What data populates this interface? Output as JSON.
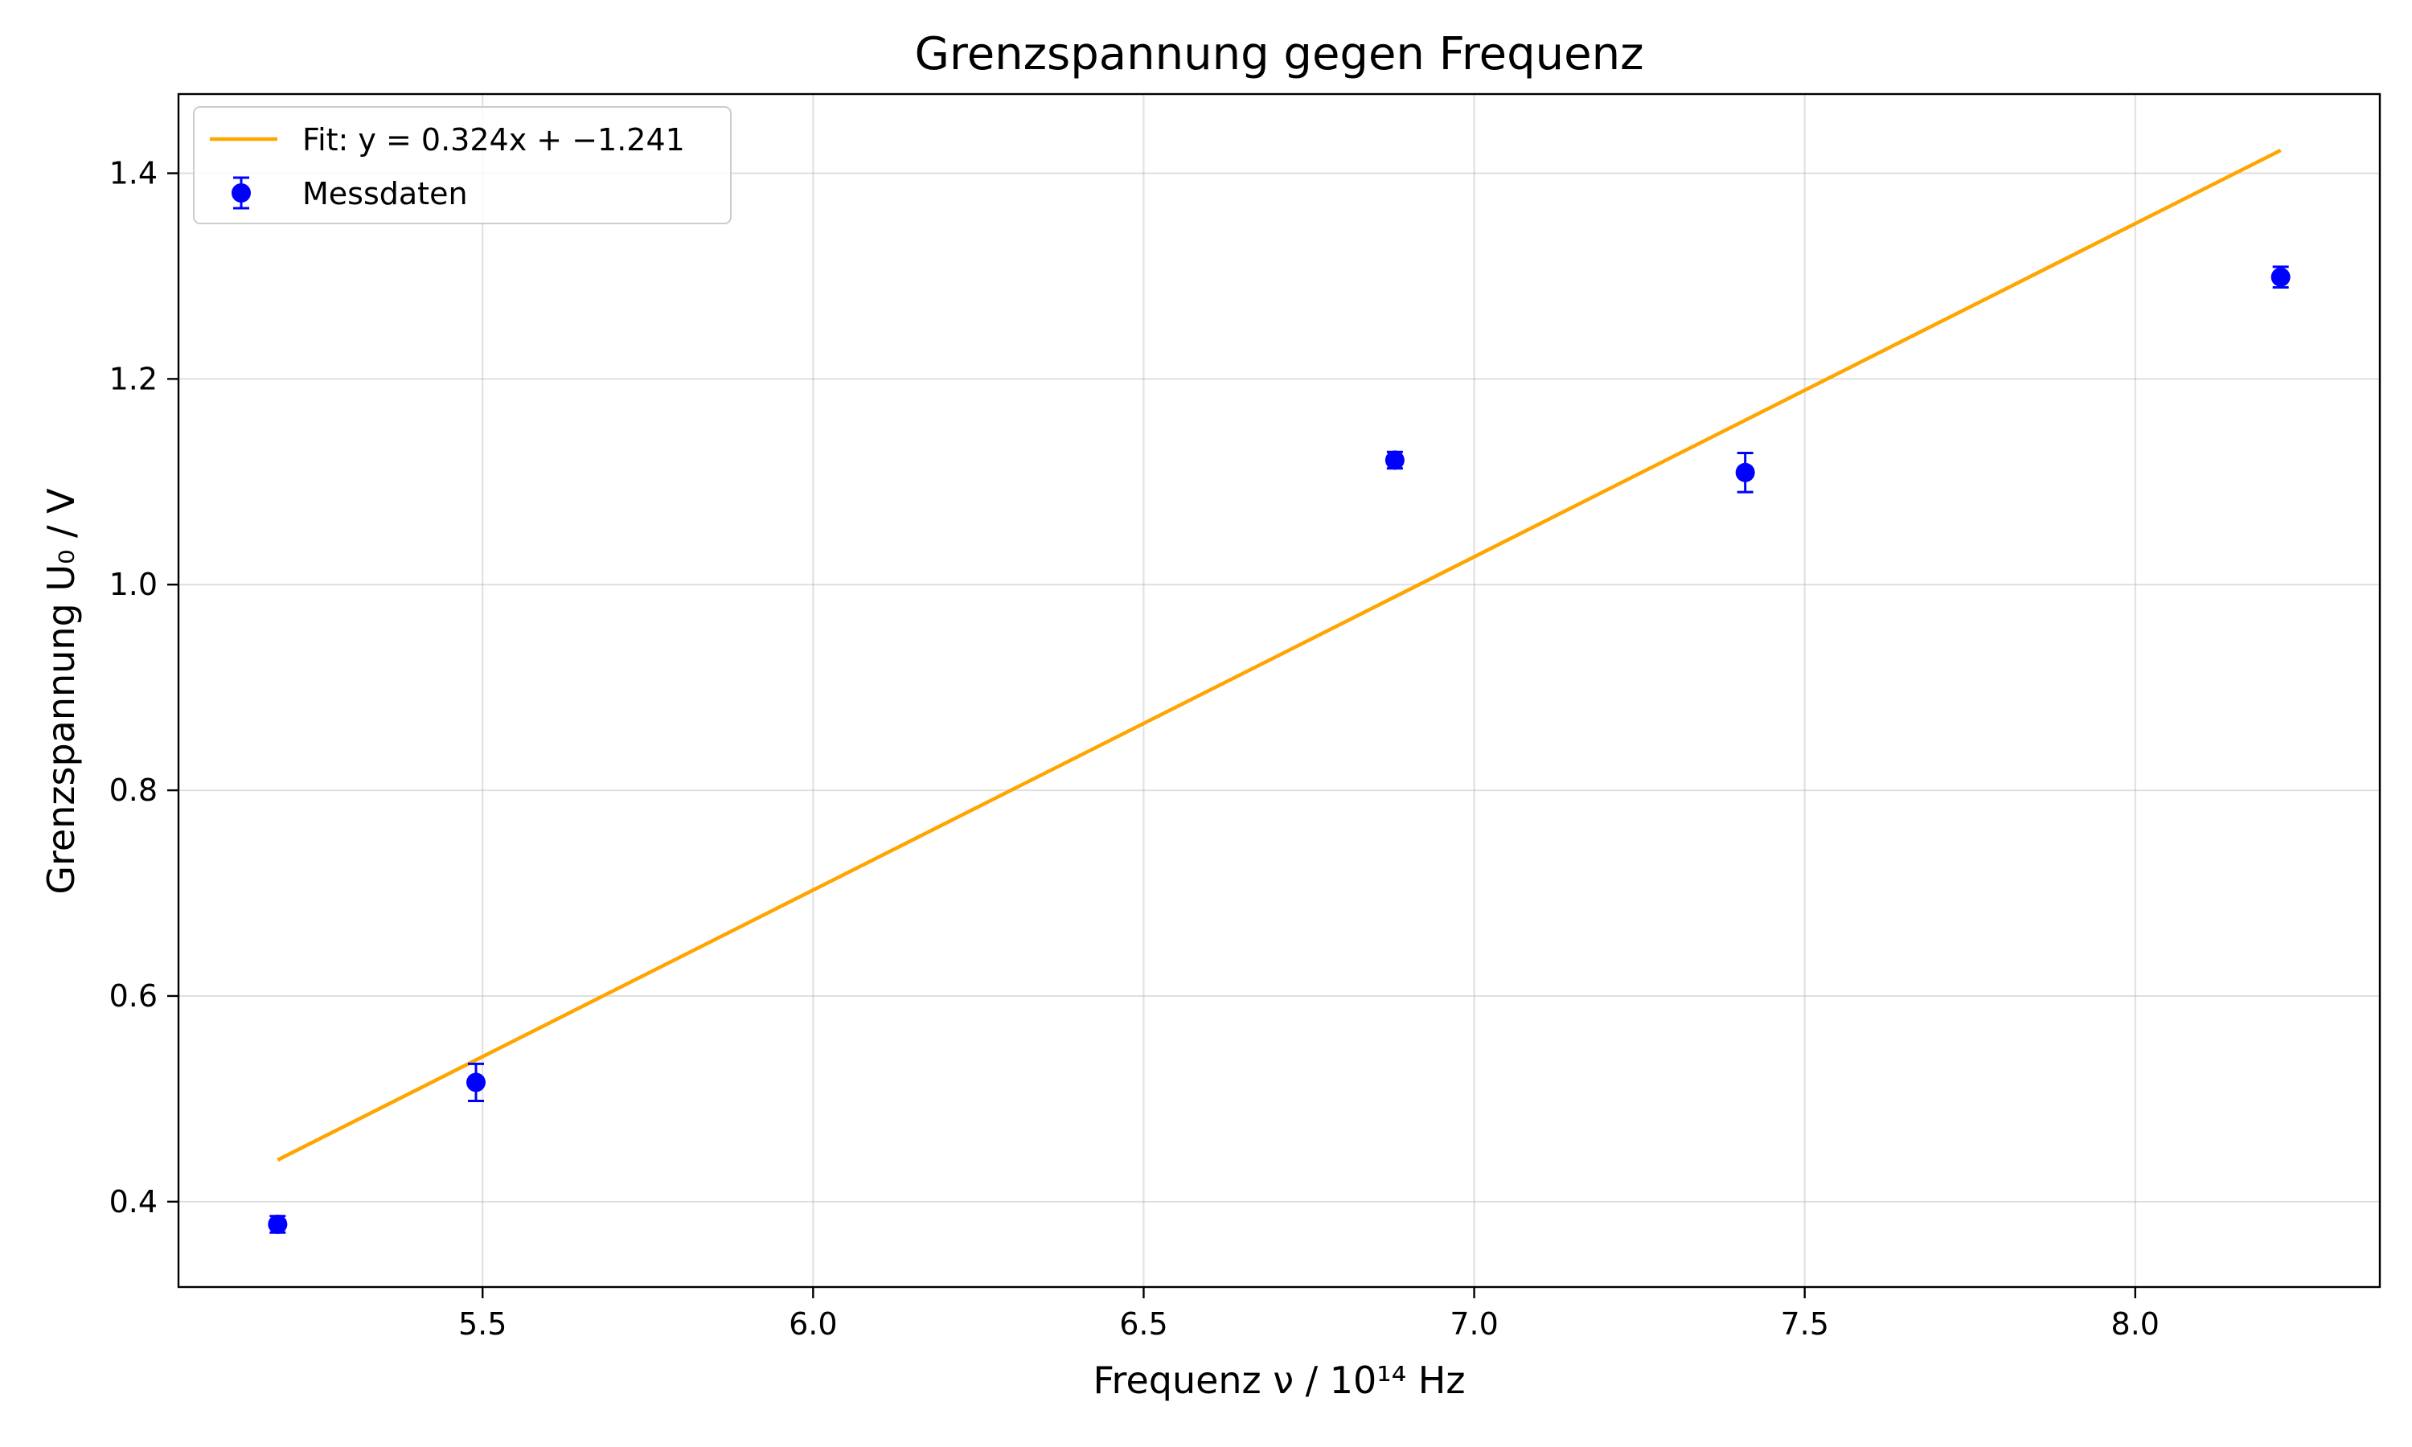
{
  "chart_data": {
    "type": "scatter",
    "title": "Grenzspannung gegen Frequenz",
    "xlabel": "Frequenz ν / 10¹⁴ Hz",
    "ylabel": "Grenzspannung U₀ / V",
    "xlim": [
      5.04,
      8.37
    ],
    "ylim": [
      0.317,
      1.477
    ],
    "x_ticks": [
      5.5,
      6.0,
      6.5,
      7.0,
      7.5,
      8.0
    ],
    "x_tick_labels": [
      "5.5",
      "6.0",
      "6.5",
      "7.0",
      "7.5",
      "8.0"
    ],
    "y_ticks": [
      0.4,
      0.6,
      0.8,
      1.0,
      1.2,
      1.4
    ],
    "y_tick_labels": [
      "0.4",
      "0.6",
      "0.8",
      "1.0",
      "1.2",
      "1.4"
    ],
    "grid": true,
    "legend_position": "top-left",
    "series": [
      {
        "name": "Messdaten",
        "kind": "errorbar",
        "color": "#0000ff",
        "x": [
          5.19,
          5.49,
          6.88,
          7.41,
          8.22
        ],
        "y": [
          0.378,
          0.516,
          1.121,
          1.109,
          1.299
        ],
        "yerr": [
          0.008,
          0.018,
          0.008,
          0.019,
          0.01
        ]
      },
      {
        "name": "Fit: y = 0.324x + −1.241",
        "kind": "line",
        "color": "#ffa500",
        "slope": 0.324,
        "intercept": -1.241,
        "x_range": [
          5.19,
          8.22
        ]
      }
    ]
  }
}
